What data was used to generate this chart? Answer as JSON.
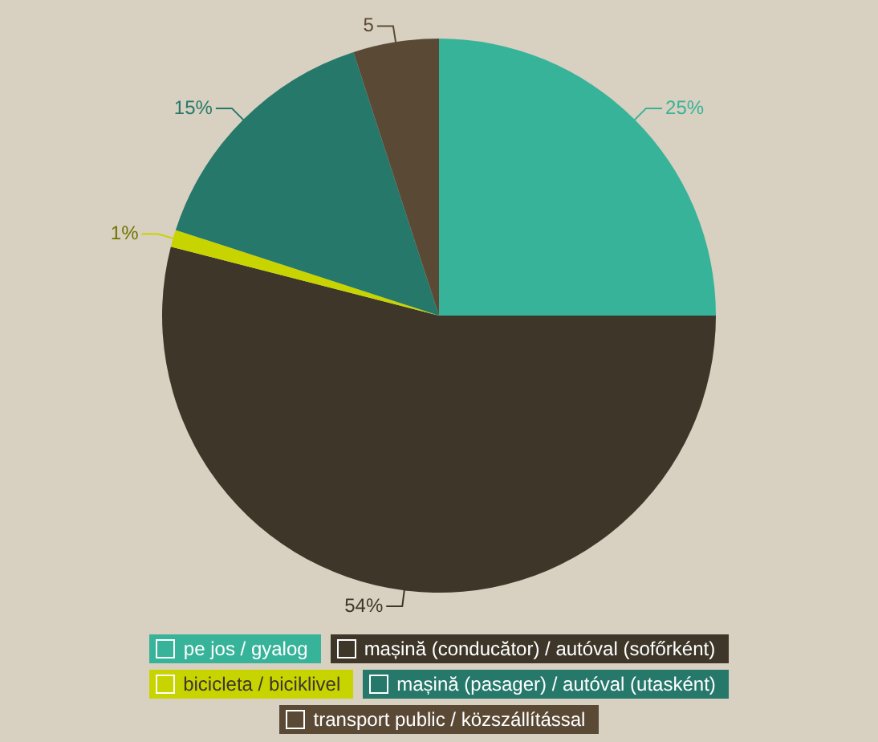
{
  "chart_data": {
    "type": "pie",
    "categories": [
      "pe jos / gyalog",
      "mașină (conducător) / autóval (sofőrként)",
      "bicicleta / biciklivel",
      "mașină (pasager) / autóval (utasként)",
      "transport public / közszállítással"
    ],
    "values": [
      25,
      54,
      1,
      15,
      5
    ],
    "colors": [
      "#37b399",
      "#3d3629",
      "#c8d400",
      "#25786a",
      "#5a4a35"
    ],
    "value_labels": [
      "25%",
      "54%",
      "1%",
      "15%",
      "5"
    ],
    "legend": "bottom"
  }
}
